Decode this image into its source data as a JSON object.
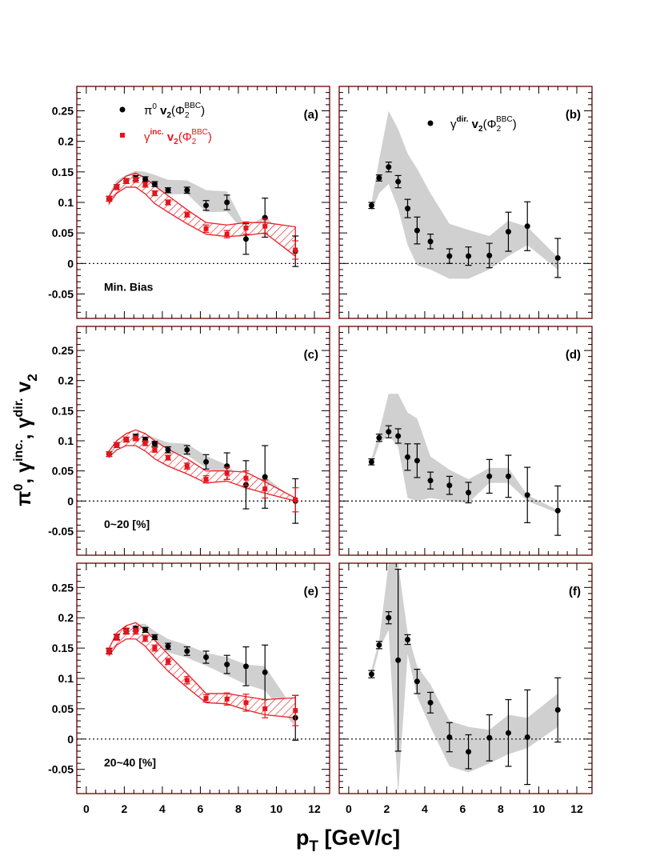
{
  "figure": {
    "ylabel": {
      "base": "π",
      "sup1": "0",
      "mid1": ", γ",
      "sup2": "inc.",
      "mid2": ", γ",
      "sup3": "dir.",
      "mid3": " v",
      "sub": "2"
    },
    "xlabel": {
      "base": "p",
      "sub": "T",
      "rest": " [GeV/c]"
    },
    "colors": {
      "pi0": "#000000",
      "gamma_inc": "#e8141c",
      "frame": "#7a1010",
      "band": "#d0d0d0"
    }
  },
  "legend": {
    "pi0": {
      "sym": "π",
      "sup": "0",
      "v": " v",
      "vsub": "2",
      "phi": "(Φ",
      "phisub": "2",
      "phisup": "BBC",
      "close": ")"
    },
    "gamma_inc": {
      "sym": "γ",
      "sup": "inc.",
      "v": " v",
      "vsub": "2",
      "phi": "(Φ",
      "phisub": "2",
      "phisup": "BBC",
      "close": ")"
    },
    "gamma_dir": {
      "sym": "γ",
      "sup": "dir.",
      "v": " v",
      "vsub": "2",
      "phi": "(Φ",
      "phisub": "2",
      "phisup": "BBC",
      "close": ")"
    }
  },
  "chart_data": [
    {
      "id": "a",
      "type": "scatter",
      "panel_label": "(a)",
      "annotation": "Min. Bias",
      "xlim": [
        -0.5,
        12.8
      ],
      "ylim": [
        -0.09,
        0.29
      ],
      "x_ticks": [
        "0",
        "2",
        "4",
        "6",
        "8",
        "10",
        "12"
      ],
      "y_ticks": [
        "-0.05",
        "0",
        "0.05",
        "0.1",
        "0.15",
        "0.2",
        "0.25"
      ],
      "series": [
        {
          "key": "pi0",
          "marker": "circle",
          "x": [
            1.2,
            1.6,
            2.1,
            2.6,
            3.1,
            3.6,
            4.3,
            5.3,
            6.3,
            7.4,
            8.4,
            9.4,
            11.0
          ],
          "y": [
            0.106,
            0.125,
            0.135,
            0.14,
            0.138,
            0.13,
            0.12,
            0.12,
            0.095,
            0.1,
            0.04,
            0.075,
            0.02
          ],
          "err": [
            0.004,
            0.004,
            0.004,
            0.004,
            0.004,
            0.004,
            0.004,
            0.005,
            0.008,
            0.012,
            0.025,
            0.032,
            0.025
          ],
          "band_lo": [
            0.1,
            0.122,
            0.131,
            0.134,
            0.13,
            0.122,
            0.113,
            0.114,
            0.084,
            0.085,
            0.048,
            0.05,
            0.01
          ],
          "band_hi": [
            0.115,
            0.136,
            0.145,
            0.152,
            0.15,
            0.145,
            0.137,
            0.136,
            0.12,
            0.118,
            0.058,
            0.078,
            0.025
          ]
        },
        {
          "key": "gamma_inc",
          "marker": "square",
          "x": [
            1.2,
            1.6,
            2.1,
            2.6,
            3.1,
            3.6,
            4.3,
            5.3,
            6.3,
            7.4,
            8.4,
            9.4,
            11.0
          ],
          "y": [
            0.106,
            0.125,
            0.135,
            0.137,
            0.129,
            0.115,
            0.1,
            0.08,
            0.057,
            0.048,
            0.058,
            0.061,
            0.022
          ],
          "err": [
            0.004,
            0.004,
            0.004,
            0.004,
            0.004,
            0.004,
            0.004,
            0.004,
            0.006,
            0.006,
            0.01,
            0.012,
            0.015
          ],
          "band_lo": [
            0.098,
            0.115,
            0.125,
            0.125,
            0.114,
            0.098,
            0.084,
            0.065,
            0.048,
            0.044,
            0.046,
            0.05,
            0.012
          ],
          "band_hi": [
            0.11,
            0.13,
            0.143,
            0.148,
            0.14,
            0.127,
            0.111,
            0.088,
            0.067,
            0.063,
            0.067,
            0.067,
            0.06
          ]
        }
      ]
    },
    {
      "id": "b",
      "type": "scatter",
      "panel_label": "(b)",
      "xlim": [
        -0.5,
        12.8
      ],
      "ylim": [
        -0.09,
        0.29
      ],
      "x_ticks": [
        "0",
        "2",
        "4",
        "6",
        "8",
        "10",
        "12"
      ],
      "series": [
        {
          "key": "gamma_dir",
          "marker": "circle",
          "x": [
            1.2,
            1.6,
            2.1,
            2.6,
            3.1,
            3.6,
            4.3,
            5.3,
            6.3,
            7.4,
            8.4,
            9.4,
            11.0
          ],
          "y": [
            0.095,
            0.14,
            0.158,
            0.134,
            0.09,
            0.054,
            0.036,
            0.012,
            0.012,
            0.013,
            0.052,
            0.061,
            0.009
          ],
          "err": [
            0.005,
            0.005,
            0.008,
            0.01,
            0.015,
            0.022,
            0.012,
            0.012,
            0.015,
            0.02,
            0.032,
            0.04,
            0.032
          ],
          "band_lo": [
            0.085,
            0.115,
            0.13,
            0.09,
            0.03,
            -0.003,
            -0.01,
            -0.025,
            -0.025,
            -0.01,
            0.012,
            0.03,
            -0.01
          ],
          "band_hi": [
            0.1,
            0.17,
            0.25,
            0.22,
            0.18,
            0.155,
            0.115,
            0.065,
            0.055,
            0.045,
            0.07,
            0.06,
            0.01
          ]
        }
      ]
    },
    {
      "id": "c",
      "type": "scatter",
      "panel_label": "(c)",
      "annotation": "0~20 [%]",
      "xlim": [
        -0.5,
        12.8
      ],
      "ylim": [
        -0.09,
        0.29
      ],
      "x_ticks": [
        "0",
        "2",
        "4",
        "6",
        "8",
        "10",
        "12"
      ],
      "y_ticks": [
        "-0.05",
        "0",
        "0.05",
        "0.1",
        "0.15",
        "0.2",
        "0.25"
      ],
      "series": [
        {
          "key": "pi0",
          "marker": "circle",
          "x": [
            1.2,
            1.6,
            2.1,
            2.6,
            3.1,
            3.6,
            4.3,
            5.3,
            6.3,
            7.4,
            8.4,
            9.4,
            11.0
          ],
          "y": [
            0.078,
            0.093,
            0.102,
            0.107,
            0.102,
            0.095,
            0.085,
            0.085,
            0.065,
            0.058,
            0.027,
            0.04,
            0.0
          ],
          "err": [
            0.004,
            0.004,
            0.004,
            0.004,
            0.004,
            0.004,
            0.005,
            0.007,
            0.012,
            0.022,
            0.04,
            0.052,
            0.037
          ],
          "band_lo": [
            0.074,
            0.089,
            0.098,
            0.102,
            0.097,
            0.088,
            0.078,
            0.076,
            0.055,
            0.04,
            0.018,
            0.02,
            -0.002
          ],
          "band_hi": [
            0.083,
            0.098,
            0.107,
            0.115,
            0.112,
            0.105,
            0.097,
            0.095,
            0.075,
            0.06,
            0.03,
            0.04,
            0.002
          ]
        },
        {
          "key": "gamma_inc",
          "marker": "square",
          "x": [
            1.2,
            1.6,
            2.1,
            2.6,
            3.1,
            3.6,
            4.3,
            5.3,
            6.3,
            7.4,
            8.4,
            9.4,
            11.0
          ],
          "y": [
            0.078,
            0.093,
            0.102,
            0.104,
            0.096,
            0.085,
            0.072,
            0.058,
            0.036,
            0.046,
            0.038,
            0.02,
            0.002
          ],
          "err": [
            0.004,
            0.004,
            0.004,
            0.004,
            0.004,
            0.004,
            0.004,
            0.005,
            0.006,
            0.01,
            0.012,
            0.015,
            0.02
          ],
          "band_lo": [
            0.073,
            0.085,
            0.092,
            0.092,
            0.083,
            0.07,
            0.058,
            0.045,
            0.03,
            0.033,
            0.022,
            0.013,
            0.0
          ],
          "band_hi": [
            0.083,
            0.1,
            0.112,
            0.118,
            0.112,
            0.1,
            0.086,
            0.07,
            0.05,
            0.05,
            0.048,
            0.032,
            0.005
          ]
        }
      ]
    },
    {
      "id": "d",
      "type": "scatter",
      "panel_label": "(d)",
      "xlim": [
        -0.5,
        12.8
      ],
      "ylim": [
        -0.09,
        0.29
      ],
      "x_ticks": [
        "0",
        "2",
        "4",
        "6",
        "8",
        "10",
        "12"
      ],
      "series": [
        {
          "key": "gamma_dir",
          "marker": "circle",
          "x": [
            1.2,
            1.6,
            2.1,
            2.6,
            3.1,
            3.6,
            4.3,
            5.3,
            6.3,
            7.4,
            8.4,
            9.4,
            11.0
          ],
          "y": [
            0.065,
            0.105,
            0.115,
            0.108,
            0.073,
            0.067,
            0.034,
            0.026,
            0.014,
            0.041,
            0.041,
            0.01,
            -0.016
          ],
          "err": [
            0.005,
            0.006,
            0.01,
            0.012,
            0.022,
            0.028,
            0.014,
            0.015,
            0.017,
            0.028,
            0.035,
            0.046,
            0.041
          ],
          "band_lo": [
            0.058,
            0.095,
            0.11,
            0.09,
            0.005,
            0.0,
            0.005,
            0.0,
            -0.003,
            0.03,
            0.03,
            0.0,
            -0.02
          ],
          "band_hi": [
            0.07,
            0.115,
            0.178,
            0.178,
            0.147,
            0.137,
            0.074,
            0.052,
            0.036,
            0.055,
            0.055,
            0.01,
            -0.015
          ]
        }
      ]
    },
    {
      "id": "e",
      "type": "scatter",
      "panel_label": "(e)",
      "annotation": "20~40 [%]",
      "xlim": [
        -0.5,
        12.8
      ],
      "ylim": [
        -0.09,
        0.29
      ],
      "x_ticks": [
        "0",
        "2",
        "4",
        "6",
        "8",
        "10",
        "12"
      ],
      "y_ticks": [
        "-0.05",
        "0",
        "0.05",
        "0.1",
        "0.15",
        "0.2",
        "0.25"
      ],
      "series": [
        {
          "key": "pi0",
          "marker": "circle",
          "x": [
            1.2,
            1.6,
            2.1,
            2.6,
            3.1,
            3.6,
            4.3,
            5.3,
            6.3,
            7.4,
            8.4,
            9.4,
            11.0
          ],
          "y": [
            0.145,
            0.168,
            0.178,
            0.182,
            0.18,
            0.168,
            0.153,
            0.145,
            0.135,
            0.123,
            0.12,
            0.11,
            0.035
          ],
          "err": [
            0.004,
            0.004,
            0.004,
            0.004,
            0.004,
            0.004,
            0.005,
            0.007,
            0.01,
            0.015,
            0.032,
            0.045,
            0.037
          ],
          "band_lo": [
            0.14,
            0.164,
            0.173,
            0.177,
            0.173,
            0.158,
            0.143,
            0.134,
            0.121,
            0.105,
            0.09,
            0.08,
            0.02
          ],
          "band_hi": [
            0.15,
            0.172,
            0.183,
            0.19,
            0.19,
            0.178,
            0.165,
            0.155,
            0.142,
            0.135,
            0.123,
            0.12,
            0.045
          ]
        },
        {
          "key": "gamma_inc",
          "marker": "square",
          "x": [
            1.2,
            1.6,
            2.1,
            2.6,
            3.1,
            3.6,
            4.3,
            5.3,
            6.3,
            7.4,
            8.4,
            9.4,
            11.0
          ],
          "y": [
            0.145,
            0.168,
            0.178,
            0.178,
            0.166,
            0.15,
            0.128,
            0.097,
            0.067,
            0.066,
            0.06,
            0.05,
            0.047
          ],
          "err": [
            0.005,
            0.005,
            0.005,
            0.005,
            0.005,
            0.005,
            0.005,
            0.006,
            0.006,
            0.01,
            0.014,
            0.015,
            0.025
          ],
          "band_lo": [
            0.138,
            0.155,
            0.165,
            0.165,
            0.153,
            0.135,
            0.112,
            0.085,
            0.06,
            0.058,
            0.048,
            0.04,
            0.035
          ],
          "band_hi": [
            0.15,
            0.175,
            0.187,
            0.192,
            0.18,
            0.163,
            0.14,
            0.108,
            0.075,
            0.075,
            0.07,
            0.065,
            0.068
          ]
        }
      ]
    },
    {
      "id": "f",
      "type": "scatter",
      "panel_label": "(f)",
      "xlim": [
        -0.5,
        12.8
      ],
      "ylim": [
        -0.09,
        0.29
      ],
      "x_ticks": [
        "0",
        "2",
        "4",
        "6",
        "8",
        "10",
        "12"
      ],
      "series": [
        {
          "key": "gamma_dir",
          "marker": "circle",
          "x": [
            1.2,
            1.6,
            2.1,
            2.6,
            3.1,
            3.6,
            4.3,
            5.3,
            6.3,
            7.4,
            8.4,
            9.4,
            11.0
          ],
          "y": [
            0.107,
            0.155,
            0.2,
            0.13,
            0.164,
            0.095,
            0.06,
            0.003,
            -0.021,
            0.002,
            0.01,
            0.003,
            0.048
          ],
          "err": [
            0.006,
            0.006,
            0.01,
            0.15,
            0.008,
            0.02,
            0.017,
            0.024,
            0.028,
            0.038,
            0.055,
            0.078,
            0.053
          ],
          "band_lo": [
            0.1,
            0.148,
            0.18,
            -0.09,
            0.14,
            0.07,
            0.02,
            -0.045,
            -0.055,
            -0.04,
            -0.025,
            -0.015,
            0.02
          ],
          "band_hi": [
            0.115,
            0.162,
            0.29,
            0.29,
            0.175,
            0.12,
            0.09,
            0.03,
            0.02,
            0.015,
            0.04,
            0.035,
            0.075
          ]
        }
      ]
    }
  ]
}
